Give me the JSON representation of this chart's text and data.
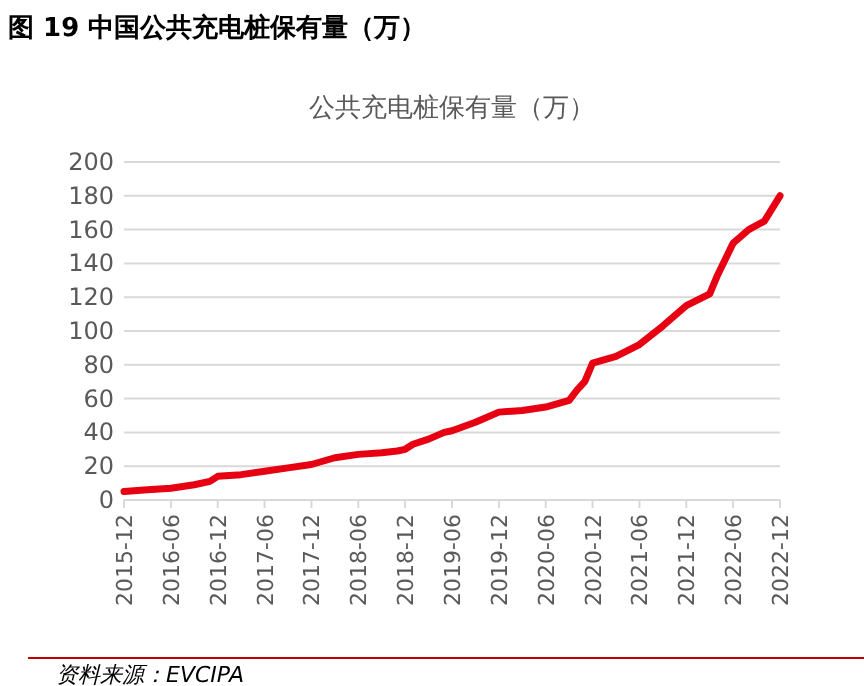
{
  "chart_data": {
    "type": "line",
    "title": "图 19 中国公共充电桩保有量（万）",
    "subtitle": "公共充电桩保有量（万）",
    "annotations": [
      "资料来源：EVCIPA"
    ],
    "x": [
      "2015-12",
      "2016-03",
      "2016-06",
      "2016-09",
      "2016-11",
      "2016-12",
      "2017-03",
      "2017-06",
      "2017-09",
      "2017-12",
      "2018-03",
      "2018-06",
      "2018-09",
      "2018-11",
      "2018-12",
      "2019-01",
      "2019-03",
      "2019-05",
      "2019-06",
      "2019-09",
      "2019-12",
      "2020-03",
      "2020-06",
      "2020-09",
      "2020-10",
      "2020-11",
      "2020-12",
      "2021-03",
      "2021-06",
      "2021-09",
      "2021-12",
      "2022-03",
      "2022-04",
      "2022-06",
      "2022-08",
      "2022-10",
      "2022-12"
    ],
    "series": [
      {
        "color": "#e60012",
        "values": [
          5,
          6,
          7,
          9,
          11,
          14,
          15,
          17,
          19,
          21,
          25,
          27,
          28,
          29,
          30,
          33,
          36,
          40,
          41,
          46,
          52,
          53,
          55,
          59,
          65,
          70,
          81,
          85,
          92,
          103,
          115,
          122,
          133,
          152,
          160,
          165,
          180
        ]
      }
    ],
    "ylim": [
      0,
      200
    ],
    "yticks": [
      0,
      20,
      40,
      60,
      80,
      100,
      120,
      140,
      160,
      180,
      200
    ],
    "xlim": [
      "2015-12",
      "2022-12"
    ],
    "xticks": [
      "2015-12",
      "2016-06",
      "2016-12",
      "2017-06",
      "2017-12",
      "2018-06",
      "2018-12",
      "2019-06",
      "2019-12",
      "2020-06",
      "2020-12",
      "2021-06",
      "2021-12",
      "2022-06",
      "2022-12"
    ],
    "grid": "y",
    "marker": "none",
    "line_style": "solid"
  }
}
